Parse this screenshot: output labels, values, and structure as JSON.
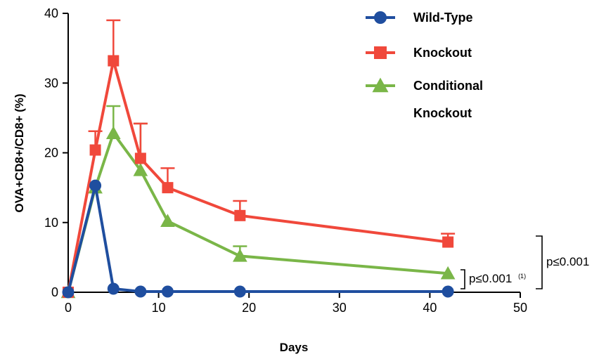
{
  "chart_data": {
    "type": "line",
    "xlabel": "Days",
    "ylabel": "OVA+CD8+/CD8+ (%)",
    "xlim": [
      0,
      50
    ],
    "ylim": [
      0,
      40
    ],
    "xticks": [
      0,
      10,
      20,
      30,
      40,
      50
    ],
    "yticks": [
      0,
      10,
      20,
      30,
      40
    ],
    "legend_position": "top-right",
    "grid": false,
    "series": [
      {
        "name": "Wild-Type",
        "color": "#1f4e9f",
        "marker": "circle",
        "x": [
          0,
          3,
          5,
          8,
          11,
          19,
          42
        ],
        "y": [
          0,
          15.3,
          0.5,
          0.1,
          0.1,
          0.1,
          0.1
        ],
        "error": [
          0,
          0,
          0,
          0,
          0,
          0,
          0
        ]
      },
      {
        "name": "Knockout",
        "color": "#f0483b",
        "marker": "square",
        "x": [
          0,
          3,
          5,
          8,
          11,
          19,
          42
        ],
        "y": [
          0,
          20.4,
          33.2,
          19.2,
          15.0,
          11.0,
          7.2
        ],
        "error": [
          0,
          2.7,
          5.8,
          5.0,
          2.8,
          2.1,
          1.2
        ]
      },
      {
        "name": "Conditional Knockout",
        "name_lines": [
          "Conditional",
          "Knockout"
        ],
        "color": "#7ab648",
        "marker": "triangle",
        "x": [
          0,
          3,
          5,
          8,
          11,
          19,
          42
        ],
        "y": [
          0,
          15.0,
          22.8,
          17.5,
          10.2,
          5.2,
          2.7
        ],
        "error": [
          0,
          0,
          3.9,
          6.7,
          0,
          1.4,
          0
        ]
      }
    ],
    "annotations": [
      {
        "text": "p≤0.001",
        "superscript": "(1)"
      },
      {
        "text": "p≤0.001",
        "superscript": ""
      }
    ]
  }
}
